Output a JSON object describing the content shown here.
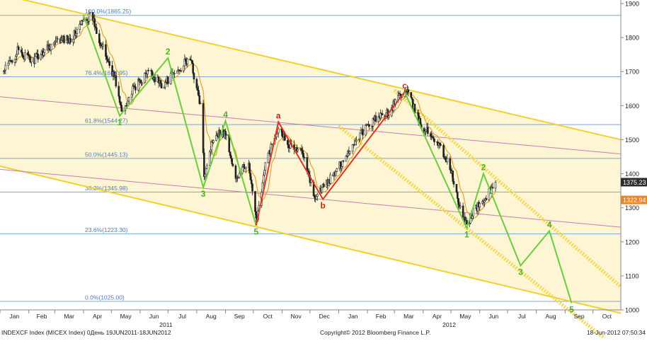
{
  "chart_data": {
    "type": "line",
    "title": "",
    "series": [
      {
        "kind": "candlestick",
        "x": [
          "2011-01-05",
          "2011-01-20",
          "2011-02-05",
          "2011-02-20",
          "2011-03-05",
          "2011-03-20",
          "2011-04-01",
          "2011-04-10",
          "2011-04-20",
          "2011-05-05",
          "2011-05-12",
          "2011-05-25",
          "2011-06-10",
          "2011-06-25",
          "2011-07-10",
          "2011-07-25",
          "2011-08-05",
          "2011-08-09",
          "2011-08-20",
          "2011-09-01",
          "2011-09-12",
          "2011-09-25",
          "2011-10-04",
          "2011-10-15",
          "2011-10-28",
          "2011-11-10",
          "2011-11-25",
          "2011-12-05",
          "2011-12-15",
          "2011-12-28",
          "2012-01-10",
          "2012-01-25",
          "2012-02-10",
          "2012-02-25",
          "2012-03-05",
          "2012-03-15",
          "2012-03-30",
          "2012-04-15",
          "2012-04-30",
          "2012-05-10",
          "2012-05-18",
          "2012-05-25",
          "2012-06-05",
          "2012-06-18"
        ],
        "values": [
          1700,
          1760,
          1730,
          1770,
          1790,
          1800,
          1850,
          1865,
          1780,
          1680,
          1580,
          1650,
          1700,
          1660,
          1700,
          1740,
          1600,
          1400,
          1520,
          1520,
          1380,
          1440,
          1260,
          1440,
          1540,
          1480,
          1460,
          1330,
          1360,
          1400,
          1460,
          1520,
          1560,
          1580,
          1630,
          1640,
          1540,
          1500,
          1420,
          1300,
          1250,
          1290,
          1320,
          1375
        ]
      },
      {
        "name": "Moving average",
        "kind": "line",
        "color": "#e3a235"
      }
    ],
    "x_axis": {
      "range": [
        "2011-01-01",
        "2012-10-31"
      ],
      "ticks": [
        {
          "label": "Jan",
          "date": "2011-01-01"
        },
        {
          "label": "Feb",
          "date": "2011-02-01"
        },
        {
          "label": "Mar",
          "date": "2011-03-01"
        },
        {
          "label": "Apr",
          "date": "2011-04-01"
        },
        {
          "label": "May",
          "date": "2011-05-01"
        },
        {
          "label": "Jun",
          "date": "2011-06-01"
        },
        {
          "label": "Jul",
          "date": "2011-07-01"
        },
        {
          "label": "Aug",
          "date": "2011-08-01"
        },
        {
          "label": "Sep",
          "date": "2011-09-01"
        },
        {
          "label": "Oct",
          "date": "2011-10-01"
        },
        {
          "label": "Nov",
          "date": "2011-11-01"
        },
        {
          "label": "Dec",
          "date": "2011-12-01"
        },
        {
          "label": "Jan",
          "date": "2012-01-01"
        },
        {
          "label": "Feb",
          "date": "2012-02-01"
        },
        {
          "label": "Mar",
          "date": "2012-03-01"
        },
        {
          "label": "Apr",
          "date": "2012-04-01"
        },
        {
          "label": "May",
          "date": "2012-05-01"
        },
        {
          "label": "Jun",
          "date": "2012-06-01"
        },
        {
          "label": "Jul",
          "date": "2012-07-01"
        },
        {
          "label": "Aug",
          "date": "2012-08-01"
        },
        {
          "label": "Sep",
          "date": "2012-09-01"
        },
        {
          "label": "Oct",
          "date": "2012-10-01"
        }
      ],
      "year_labels": [
        {
          "label": "2011",
          "date": "2011-07-01"
        },
        {
          "label": "2012",
          "date": "2012-05-01"
        }
      ]
    },
    "y_axis": {
      "range": [
        1000,
        1900
      ],
      "position": "right",
      "ticks": [
        1000,
        1100,
        1200,
        1300,
        1400,
        1500,
        1600,
        1700,
        1800,
        1900
      ]
    },
    "price_tags": [
      {
        "label": "1375.23",
        "value": 1375.23,
        "style": "dark"
      },
      {
        "label": "1322.94",
        "value": 1322.94,
        "style": "orange"
      }
    ],
    "fib_levels": [
      {
        "label": "100.0%(1865.25)",
        "value": 1865.25
      },
      {
        "label": "76.4%(1684.95)",
        "value": 1684.95
      },
      {
        "label": "61.8%(1544.27)",
        "value": 1544.27
      },
      {
        "label": "50.0%(1445.13)",
        "value": 1445.13
      },
      {
        "label": "38.2%(1345.98)",
        "value": 1345.98
      },
      {
        "label": "23.6%(1223.30)",
        "value": 1223.3
      },
      {
        "label": "0.0%(1025.00)",
        "value": 1025.0
      }
    ],
    "channel_lines": [
      {
        "name": "channel-upper",
        "color": "#f2d02f",
        "from": {
          "date": "2010-12-20",
          "value": 1935
        },
        "to": {
          "date": "2012-10-31",
          "value": 1500
        }
      },
      {
        "name": "channel-lower",
        "color": "#f2d02f",
        "from": {
          "date": "2010-12-20",
          "value": 1430
        },
        "to": {
          "date": "2012-10-31",
          "value": 990
        }
      },
      {
        "name": "inner-pink-upper",
        "color": "#c77fb0",
        "from": {
          "date": "2011-09-01",
          "value": 1565
        },
        "to": {
          "date": "2012-10-31",
          "value": 1458
        }
      },
      {
        "name": "inner-pink-lower",
        "color": "#c77fb0",
        "from": {
          "date": "2011-08-05",
          "value": 1358
        },
        "to": {
          "date": "2012-10-31",
          "value": 1243
        }
      }
    ],
    "dotted_channels": [
      {
        "name": "dotted-upper",
        "from": {
          "date": "2012-03-01",
          "value": 1645
        },
        "to": {
          "date": "2012-10-31",
          "value": 1068
        }
      },
      {
        "name": "dotted-lower",
        "from": {
          "date": "2012-01-01",
          "value": 1540
        },
        "to": {
          "date": "2012-09-15",
          "value": 978
        }
      }
    ],
    "waves": [
      {
        "name": "green-wave-2011",
        "color": "#6ccd3c",
        "points": [
          {
            "date": "2011-04-01",
            "value": 1865,
            "label": ""
          },
          {
            "date": "2011-05-10",
            "value": 1570,
            "label": "1"
          },
          {
            "date": "2011-07-01",
            "value": 1740,
            "label": "2"
          },
          {
            "date": "2011-08-08",
            "value": 1360,
            "label": "3"
          },
          {
            "date": "2011-09-01",
            "value": 1555,
            "label": "4"
          },
          {
            "date": "2011-10-04",
            "value": 1248,
            "label": "5"
          }
        ]
      },
      {
        "name": "red-wave-abc",
        "color": "#d9352a",
        "points": [
          {
            "date": "2011-10-04",
            "value": 1248,
            "label": ""
          },
          {
            "date": "2011-10-28",
            "value": 1552,
            "label": "a"
          },
          {
            "date": "2011-12-15",
            "value": 1325,
            "label": "b"
          },
          {
            "date": "2012-03-12",
            "value": 1640,
            "label": "c"
          }
        ]
      },
      {
        "name": "green-wave-2012",
        "color": "#6ccd3c",
        "points": [
          {
            "date": "2012-03-12",
            "value": 1640,
            "label": ""
          },
          {
            "date": "2012-05-18",
            "value": 1240,
            "label": "1"
          },
          {
            "date": "2012-06-05",
            "value": 1400,
            "label": "2"
          },
          {
            "date": "2012-07-15",
            "value": 1130,
            "label": "3"
          },
          {
            "date": "2012-08-15",
            "value": 1232,
            "label": "4"
          },
          {
            "date": "2012-09-08",
            "value": 1020,
            "label": "5"
          }
        ]
      }
    ],
    "grid": true,
    "legend": "none"
  },
  "footer": {
    "left": "INDEXCF Index (MICEX Index) 0День 19JUN2011-18JUN2012",
    "center": "Copyright© 2012 Bloomberg Finance L.P.",
    "right": "18-Jun-2012 07:50:34"
  },
  "colors": {
    "channel_fill": "#fdf5d3",
    "fib_line": "#7fa8d8",
    "fib_text": "#4c7fc4",
    "candle": "#222222",
    "axis": "#888888"
  }
}
